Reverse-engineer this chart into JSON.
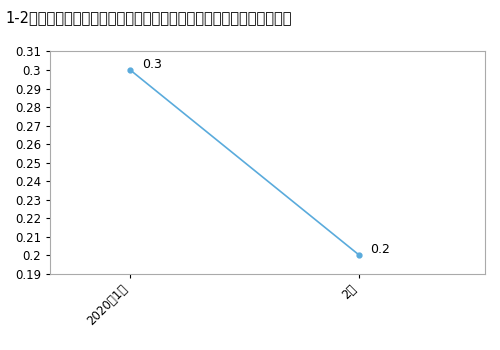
{
  "title": "1-2月泵、阀门、压缩机及类似机械制造工业生产者出厂价格指数同比涨",
  "x_labels": [
    "2020年1月",
    "2月"
  ],
  "y_values": [
    0.3,
    0.2
  ],
  "y_annotations": [
    "0.3",
    "0.2"
  ],
  "line_color": "#5aabdc",
  "marker_color": "#5aabdc",
  "ylim": [
    0.19,
    0.31
  ],
  "yticks": [
    0.19,
    0.2,
    0.21,
    0.22,
    0.23,
    0.24,
    0.25,
    0.26,
    0.27,
    0.28,
    0.29,
    0.3,
    0.31
  ],
  "ytick_labels": [
    "0.19",
    "0.2",
    "0.21",
    "0.22",
    "0.23",
    "0.24",
    "0.25",
    "0.26",
    "0.27",
    "0.28",
    "0.29",
    "0.3",
    "0.31"
  ],
  "background_color": "#ffffff",
  "border_color": "#aaaaaa",
  "title_fontsize": 10.5,
  "tick_fontsize": 8.5,
  "annotation_fontsize": 9
}
